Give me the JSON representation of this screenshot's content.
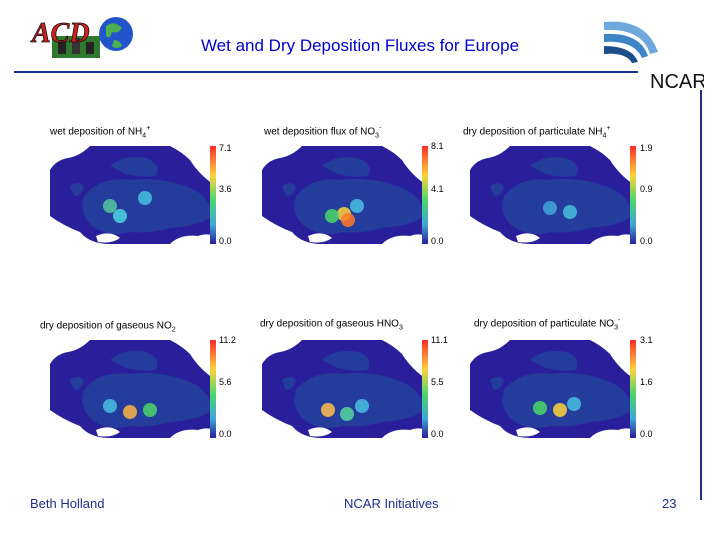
{
  "header": {
    "title": "Wet and Dry Deposition Fluxes for Europe",
    "left_logo_text": "ACD",
    "right_logo_text": "NCAR"
  },
  "panels": [
    {
      "label": "wet deposition of NH",
      "sub": "4",
      "sup": "+",
      "ticks": [
        "7.1",
        "3.6",
        "0.0"
      ]
    },
    {
      "label": "wet deposition flux of NO",
      "sub": "3",
      "sup": "-",
      "ticks": [
        "8.1",
        "4.1",
        "0.0"
      ]
    },
    {
      "label": "dry deposition of particulate NH",
      "sub": "4",
      "sup": "+",
      "ticks": [
        "1.9",
        "0.9",
        "0.0"
      ]
    },
    {
      "label": "dry deposition of gaseous NO",
      "sub": "2",
      "sup": "",
      "ticks": [
        "11.2",
        "5.6",
        "0.0"
      ]
    },
    {
      "label": "dry deposition of gaseous HNO",
      "sub": "3",
      "sup": "",
      "ticks": [
        "11.1",
        "5.5",
        "0.0"
      ]
    },
    {
      "label": "dry deposition of particulate NO",
      "sub": "3",
      "sup": "-",
      "ticks": [
        "3.1",
        "1.6",
        "0.0"
      ]
    }
  ],
  "footer": {
    "author": "Beth Holland",
    "center": "NCAR Initiatives",
    "page_number": "23"
  },
  "colors": {
    "title": "#0000cc",
    "rule": "#1a2f8a",
    "ocean": "#2a1f9a",
    "land": "#243c9c"
  }
}
